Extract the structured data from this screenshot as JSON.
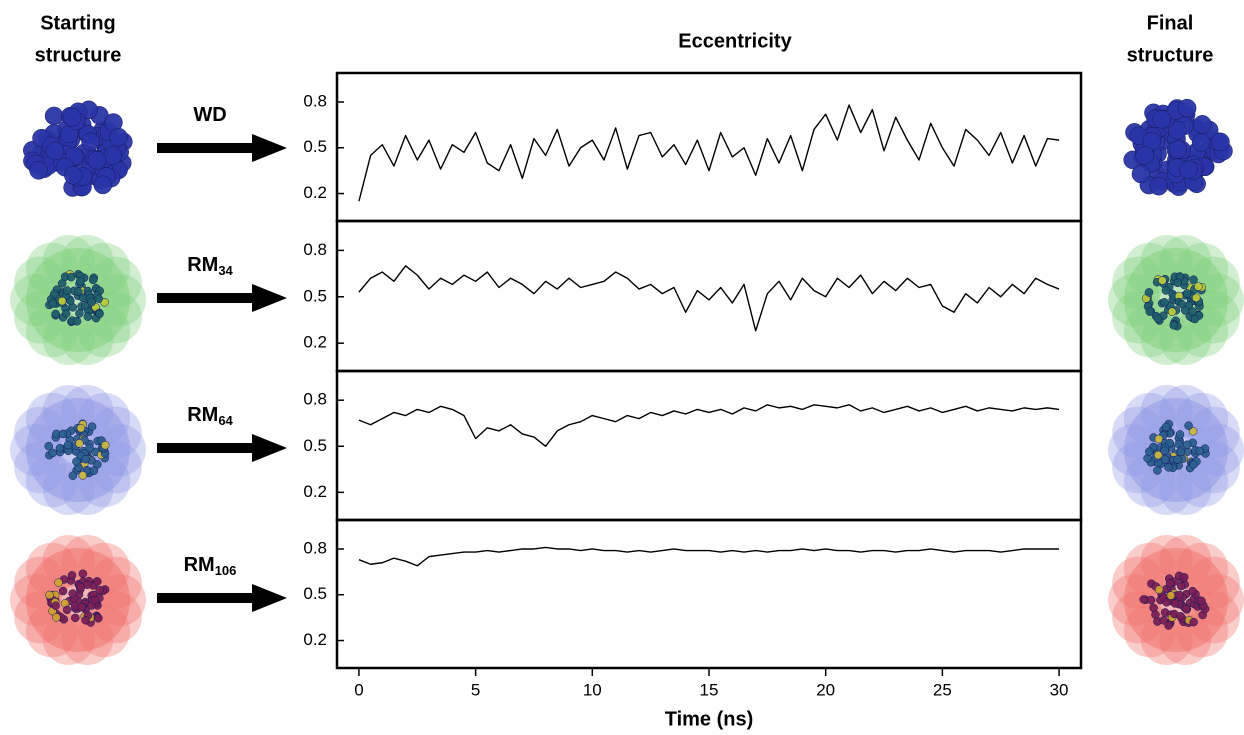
{
  "header": {
    "start": [
      "Starting",
      "structure"
    ],
    "final": [
      "Final",
      "structure"
    ]
  },
  "chart_data": [
    {
      "type": "line",
      "title": "Eccentricity",
      "label": "WD",
      "color": "#000000",
      "xlim": [
        -0.94,
        30.94
      ],
      "ylim": [
        0.02,
        0.99
      ],
      "yticks": [
        0.2,
        0.5,
        0.8
      ],
      "x": [
        0,
        0.5,
        1,
        1.5,
        2,
        2.5,
        3,
        3.5,
        4,
        4.5,
        5,
        5.5,
        6,
        6.5,
        7,
        7.5,
        8,
        8.5,
        9,
        9.5,
        10,
        10.5,
        11,
        11.5,
        12,
        12.5,
        13,
        13.5,
        14,
        14.5,
        15,
        15.5,
        16,
        16.5,
        17,
        17.5,
        18,
        18.5,
        19,
        19.5,
        20,
        20.5,
        21,
        21.5,
        22,
        22.5,
        23,
        23.5,
        24,
        24.5,
        25,
        25.5,
        26,
        26.5,
        27,
        27.5,
        28,
        28.5,
        29,
        29.5,
        30
      ],
      "values": [
        0.15,
        0.45,
        0.52,
        0.38,
        0.58,
        0.42,
        0.55,
        0.36,
        0.52,
        0.47,
        0.6,
        0.4,
        0.35,
        0.52,
        0.3,
        0.56,
        0.45,
        0.62,
        0.38,
        0.5,
        0.55,
        0.42,
        0.63,
        0.36,
        0.58,
        0.6,
        0.44,
        0.52,
        0.39,
        0.55,
        0.35,
        0.6,
        0.44,
        0.5,
        0.32,
        0.56,
        0.4,
        0.58,
        0.35,
        0.62,
        0.72,
        0.55,
        0.78,
        0.6,
        0.75,
        0.48,
        0.7,
        0.55,
        0.42,
        0.66,
        0.5,
        0.38,
        0.62,
        0.55,
        0.45,
        0.6,
        0.4,
        0.58,
        0.38,
        0.56,
        0.55
      ]
    },
    {
      "type": "line",
      "label": "RM",
      "label_subscript": "34",
      "color": "#000000",
      "xlim": [
        -0.94,
        30.94
      ],
      "ylim": [
        0.02,
        0.99
      ],
      "yticks": [
        0.2,
        0.5,
        0.8
      ],
      "x": [
        0,
        0.5,
        1,
        1.5,
        2,
        2.5,
        3,
        3.5,
        4,
        4.5,
        5,
        5.5,
        6,
        6.5,
        7,
        7.5,
        8,
        8.5,
        9,
        9.5,
        10,
        10.5,
        11,
        11.5,
        12,
        12.5,
        13,
        13.5,
        14,
        14.5,
        15,
        15.5,
        16,
        16.5,
        17,
        17.5,
        18,
        18.5,
        19,
        19.5,
        20,
        20.5,
        21,
        21.5,
        22,
        22.5,
        23,
        23.5,
        24,
        24.5,
        25,
        25.5,
        26,
        26.5,
        27,
        27.5,
        28,
        28.5,
        29,
        29.5,
        30
      ],
      "values": [
        0.53,
        0.62,
        0.66,
        0.6,
        0.7,
        0.64,
        0.55,
        0.62,
        0.58,
        0.64,
        0.6,
        0.66,
        0.56,
        0.62,
        0.58,
        0.52,
        0.6,
        0.55,
        0.62,
        0.56,
        0.58,
        0.6,
        0.66,
        0.62,
        0.55,
        0.58,
        0.52,
        0.56,
        0.4,
        0.54,
        0.48,
        0.56,
        0.46,
        0.58,
        0.28,
        0.52,
        0.6,
        0.48,
        0.62,
        0.54,
        0.5,
        0.62,
        0.56,
        0.64,
        0.52,
        0.6,
        0.54,
        0.62,
        0.56,
        0.58,
        0.44,
        0.4,
        0.52,
        0.46,
        0.56,
        0.5,
        0.58,
        0.52,
        0.62,
        0.58,
        0.55
      ]
    },
    {
      "type": "line",
      "label": "RM",
      "label_subscript": "64",
      "color": "#000000",
      "xlim": [
        -0.94,
        30.94
      ],
      "ylim": [
        0.02,
        0.99
      ],
      "yticks": [
        0.2,
        0.5,
        0.8
      ],
      "x": [
        0,
        0.5,
        1,
        1.5,
        2,
        2.5,
        3,
        3.5,
        4,
        4.5,
        5,
        5.5,
        6,
        6.5,
        7,
        7.5,
        8,
        8.5,
        9,
        9.5,
        10,
        10.5,
        11,
        11.5,
        12,
        12.5,
        13,
        13.5,
        14,
        14.5,
        15,
        15.5,
        16,
        16.5,
        17,
        17.5,
        18,
        18.5,
        19,
        19.5,
        20,
        20.5,
        21,
        21.5,
        22,
        22.5,
        23,
        23.5,
        24,
        24.5,
        25,
        25.5,
        26,
        26.5,
        27,
        27.5,
        28,
        28.5,
        29,
        29.5,
        30
      ],
      "values": [
        0.67,
        0.64,
        0.68,
        0.72,
        0.7,
        0.74,
        0.72,
        0.76,
        0.74,
        0.7,
        0.55,
        0.62,
        0.6,
        0.64,
        0.58,
        0.56,
        0.5,
        0.6,
        0.64,
        0.66,
        0.7,
        0.68,
        0.66,
        0.7,
        0.68,
        0.72,
        0.7,
        0.73,
        0.71,
        0.74,
        0.72,
        0.74,
        0.71,
        0.75,
        0.73,
        0.77,
        0.75,
        0.76,
        0.74,
        0.77,
        0.76,
        0.75,
        0.77,
        0.73,
        0.75,
        0.72,
        0.74,
        0.76,
        0.73,
        0.75,
        0.72,
        0.74,
        0.76,
        0.73,
        0.75,
        0.74,
        0.73,
        0.75,
        0.74,
        0.75,
        0.74
      ]
    },
    {
      "type": "line",
      "label": "RM",
      "label_subscript": "106",
      "color": "#000000",
      "xlim": [
        -0.94,
        30.94
      ],
      "ylim": [
        0.02,
        0.99
      ],
      "yticks": [
        0.2,
        0.5,
        0.8
      ],
      "xticks": [
        0,
        5,
        10,
        15,
        20,
        25,
        30
      ],
      "x_label": "Time (ns)",
      "x": [
        0,
        0.5,
        1,
        1.5,
        2,
        2.5,
        3,
        3.5,
        4,
        4.5,
        5,
        5.5,
        6,
        6.5,
        7,
        7.5,
        8,
        8.5,
        9,
        9.5,
        10,
        10.5,
        11,
        11.5,
        12,
        12.5,
        13,
        13.5,
        14,
        14.5,
        15,
        15.5,
        16,
        16.5,
        17,
        17.5,
        18,
        18.5,
        19,
        19.5,
        20,
        20.5,
        21,
        21.5,
        22,
        22.5,
        23,
        23.5,
        24,
        24.5,
        25,
        25.5,
        26,
        26.5,
        27,
        27.5,
        28,
        28.5,
        29,
        29.5,
        30
      ],
      "values": [
        0.73,
        0.7,
        0.71,
        0.74,
        0.72,
        0.69,
        0.75,
        0.76,
        0.77,
        0.78,
        0.78,
        0.79,
        0.78,
        0.79,
        0.8,
        0.8,
        0.81,
        0.8,
        0.8,
        0.79,
        0.8,
        0.79,
        0.79,
        0.78,
        0.79,
        0.78,
        0.79,
        0.8,
        0.79,
        0.79,
        0.79,
        0.78,
        0.79,
        0.78,
        0.79,
        0.78,
        0.79,
        0.79,
        0.8,
        0.79,
        0.8,
        0.79,
        0.79,
        0.78,
        0.79,
        0.79,
        0.78,
        0.79,
        0.79,
        0.8,
        0.79,
        0.78,
        0.79,
        0.79,
        0.79,
        0.78,
        0.79,
        0.8,
        0.8,
        0.8,
        0.8
      ]
    }
  ]
}
